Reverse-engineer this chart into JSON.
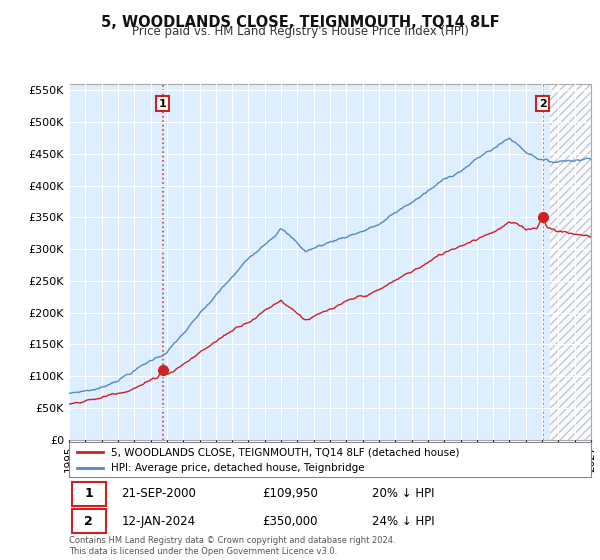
{
  "title": "5, WOODLANDS CLOSE, TEIGNMOUTH, TQ14 8LF",
  "subtitle": "Price paid vs. HM Land Registry's House Price Index (HPI)",
  "legend_line1": "5, WOODLANDS CLOSE, TEIGNMOUTH, TQ14 8LF (detached house)",
  "legend_line2": "HPI: Average price, detached house, Teignbridge",
  "footer": "Contains HM Land Registry data © Crown copyright and database right 2024.\nThis data is licensed under the Open Government Licence v3.0.",
  "annotation1": {
    "num": "1",
    "date": "21-SEP-2000",
    "price": "£109,950",
    "pct": "20% ↓ HPI"
  },
  "annotation2": {
    "num": "2",
    "date": "12-JAN-2024",
    "price": "£350,000",
    "pct": "24% ↓ HPI"
  },
  "hpi_color": "#5588cc",
  "price_color": "#cc2222",
  "vline_color": "#cc4444",
  "ylim": [
    0,
    560000
  ],
  "yticks": [
    0,
    50000,
    100000,
    150000,
    200000,
    250000,
    300000,
    350000,
    400000,
    450000,
    500000,
    550000
  ],
  "bg_color": "#ffffff",
  "plot_bg_color": "#ddeeff",
  "grid_color": "#ffffff",
  "hatch_color": "#cccccc",
  "sale1_x": 2000.75,
  "sale1_y": 109950,
  "sale2_x": 2024.04,
  "sale2_y": 350000,
  "xmin": 1995,
  "xmax": 2027,
  "hatch_start": 2024.5
}
